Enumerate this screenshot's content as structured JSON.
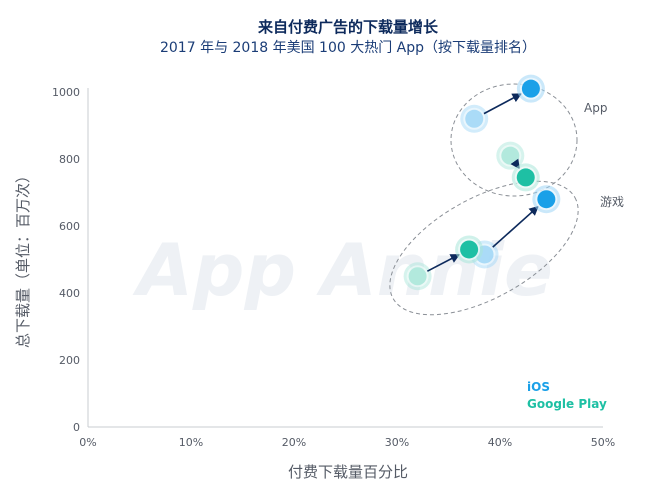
{
  "chart_data": {
    "type": "scatter",
    "title": "来自付费广告的下载量增长",
    "subtitle": "2017 年与 2018 年美国 100 大热门 App（按下载量排名）",
    "xlabel": "付费下载量百分比",
    "ylabel": "总下载量（单位：百万次）",
    "x_ticks": [
      "0%",
      "10%",
      "20%",
      "30%",
      "40%",
      "50%"
    ],
    "y_ticks": [
      "0",
      "200",
      "400",
      "600",
      "800",
      "1000"
    ],
    "xlim": [
      0,
      50
    ],
    "ylim": [
      0,
      1000
    ],
    "grid": false,
    "watermark": "App Annie",
    "legend": {
      "ios": "iOS",
      "google_play": "Google Play",
      "position": "bottom-right"
    },
    "groups": [
      {
        "label": "App",
        "points": [
          {
            "platform": "iOS",
            "from": {
              "x": 37.5,
              "y": 920
            },
            "to": {
              "x": 43,
              "y": 1010
            }
          },
          {
            "platform": "Google Play",
            "from": {
              "x": 41,
              "y": 810
            },
            "to": {
              "x": 42.5,
              "y": 745
            }
          }
        ]
      },
      {
        "label": "游戏",
        "points": [
          {
            "platform": "iOS",
            "from": {
              "x": 38.5,
              "y": 515
            },
            "to": {
              "x": 44.5,
              "y": 680
            }
          },
          {
            "platform": "Google Play",
            "from": {
              "x": 32,
              "y": 450
            },
            "to": {
              "x": 37,
              "y": 530
            }
          }
        ]
      }
    ],
    "colors": {
      "ios": "#1aa0e8",
      "ios_faded": "#9fd6f6",
      "google_play": "#1ec0a4",
      "google_play_faded": "#a8e6d8",
      "arrow": "#0d2a5c",
      "axis": "#c8ccd2",
      "ellipse": "#8a8f96"
    }
  }
}
